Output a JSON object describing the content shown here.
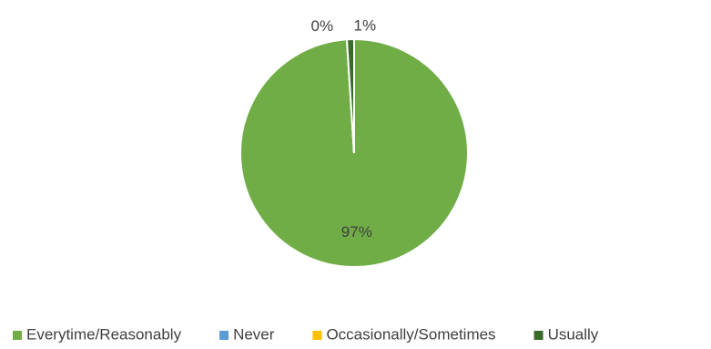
{
  "chart_data": {
    "type": "pie",
    "categories": [
      "Everytime/Reasonably",
      "Never",
      "Occasionally/Sometimes",
      "Usually"
    ],
    "values": [
      97,
      0,
      0,
      1
    ],
    "value_labels": [
      "97%",
      null,
      "0%",
      "1%"
    ],
    "colors": [
      "#70ad47",
      "#5b9bd5",
      "#ffc000",
      "#3b6b29"
    ],
    "legend": "bottom"
  }
}
